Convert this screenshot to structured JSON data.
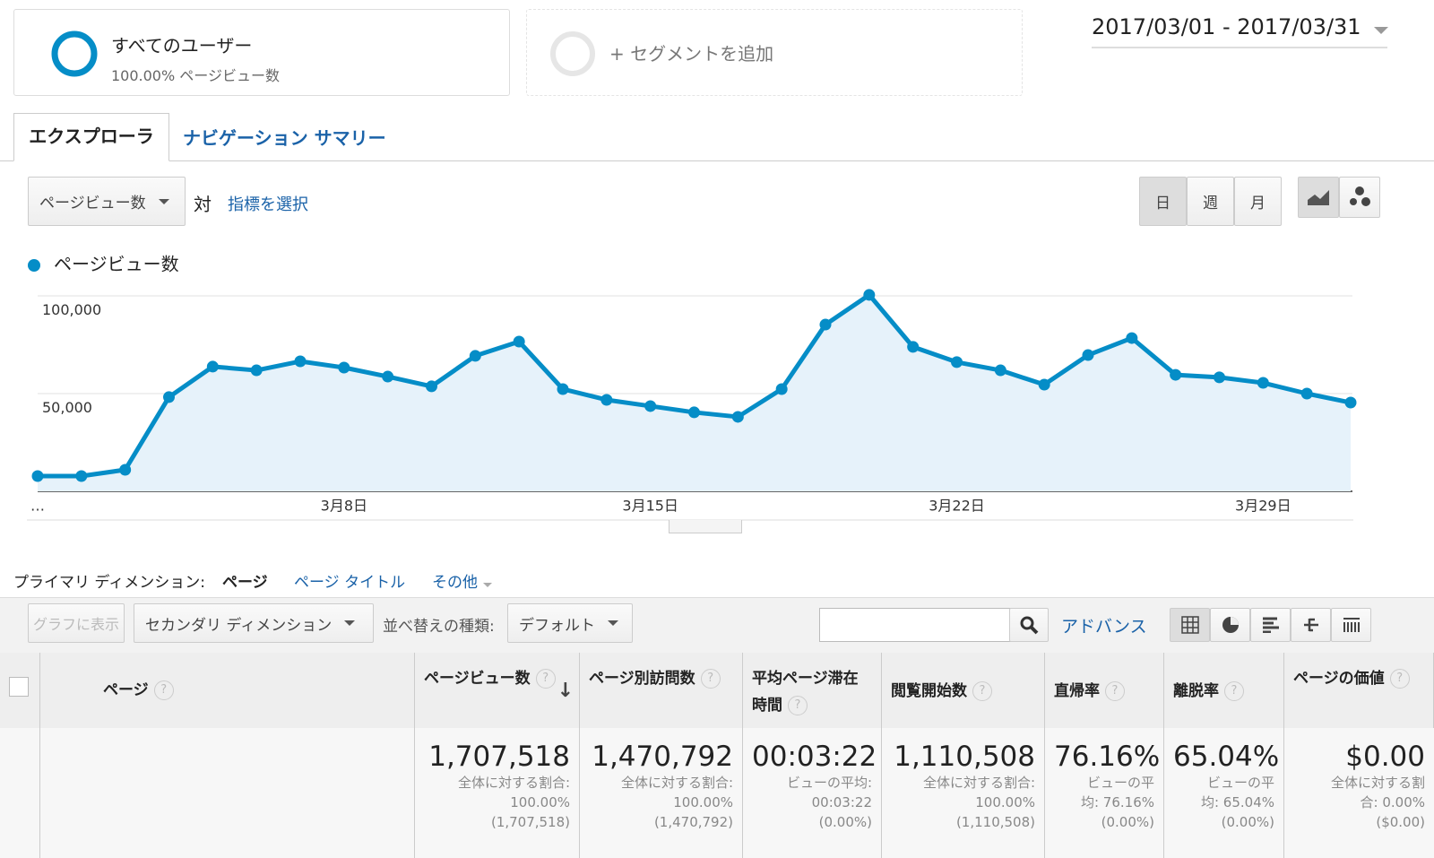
{
  "segments": [
    {
      "label": "すべてのユーザー",
      "detail": "100.00% ページビュー数"
    },
    {
      "label": "+ セグメントを追加"
    }
  ],
  "date_range": "2017/03/01 - 2017/03/31",
  "tabs": [
    "エクスプローラ",
    "ナビゲーション サマリー"
  ],
  "metric_selector": {
    "metric": "ページビュー数",
    "versus": "対",
    "select": "指標を選択"
  },
  "period_buttons": [
    "日",
    "週",
    "月"
  ],
  "chart_data": {
    "type": "line",
    "categories": [
      "…",
      null,
      null,
      null,
      null,
      null,
      null,
      "3月8日",
      null,
      null,
      null,
      null,
      null,
      null,
      "3月15日",
      null,
      null,
      null,
      null,
      null,
      null,
      "3月22日",
      null,
      null,
      null,
      null,
      null,
      null,
      "3月29日",
      null,
      null
    ],
    "series": [
      {
        "name": "ページビュー数",
        "color": "#058dc7",
        "values": [
          7800,
          7800,
          11000,
          48200,
          63800,
          61900,
          66500,
          63300,
          58700,
          53700,
          69300,
          76600,
          52300,
          46800,
          43600,
          40400,
          38100,
          52300,
          85300,
          100500,
          73900,
          66100,
          61900,
          54600,
          69700,
          78400,
          59600,
          58300,
          55500,
          50000,
          45400
        ]
      }
    ],
    "ylim": [
      0,
      100000
    ],
    "yticks": [
      {
        "value": 50000,
        "label": "50,000"
      },
      {
        "value": 100000,
        "label": "100,000"
      }
    ],
    "grid": true
  },
  "primary_dimension": {
    "label": "プライマリ ディメンション:",
    "options": [
      "ページ",
      "ページ タイトル",
      "その他"
    ]
  },
  "toolbar": {
    "chart_button": "グラフに表示",
    "secondary": "セカンダリ ディメンション",
    "sort_label": "並べ替えの種類:",
    "sort": "デフォルト",
    "advanced": "アドバンス"
  },
  "table": {
    "headers": [
      "ページ",
      "ページビュー数",
      "ページ別訪問数",
      "平均ページ滞在時間",
      "閲覧開始数",
      "直帰率",
      "離脱率",
      "ページの価値"
    ],
    "help": "?",
    "totals": [
      {
        "value": "1,707,518",
        "note": [
          "全体に対する割合:",
          "100.00%",
          "(1,707,518)"
        ]
      },
      {
        "value": "1,470,792",
        "note": [
          "全体に対する割合:",
          "100.00%",
          "(1,470,792)"
        ]
      },
      {
        "value": "00:03:22",
        "note": [
          "ビューの平均:",
          "00:03:22",
          "(0.00%)"
        ]
      },
      {
        "value": "1,110,508",
        "note": [
          "全体に対する割合:",
          "100.00%",
          "(1,110,508)"
        ]
      },
      {
        "value": "76.16%",
        "note": [
          "ビューの平",
          "均: 76.16%",
          "(0.00%)"
        ]
      },
      {
        "value": "65.04%",
        "note": [
          "ビューの平",
          "均: 65.04%",
          "(0.00%)"
        ]
      },
      {
        "value": "$0.00",
        "note": [
          "全体に対する割",
          "合: 0.00%",
          "($0.00)"
        ]
      }
    ]
  }
}
